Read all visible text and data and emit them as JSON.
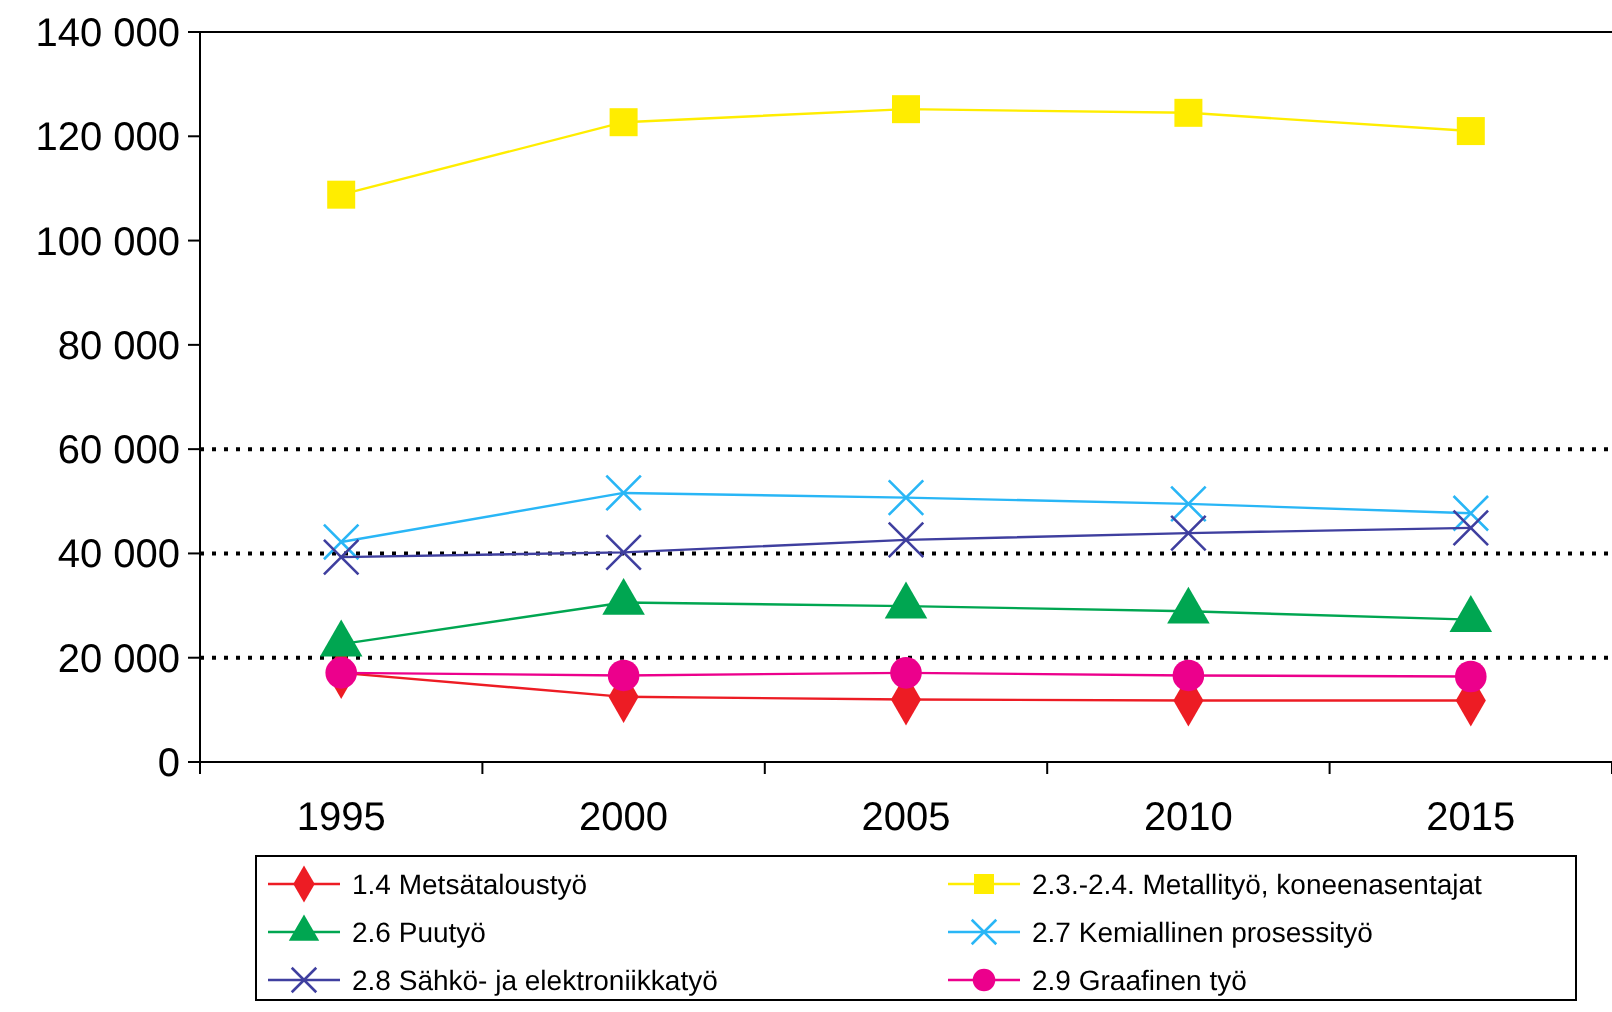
{
  "chart_data": {
    "type": "line",
    "categories": [
      "1995",
      "2000",
      "2005",
      "2010",
      "2015"
    ],
    "ylim": [
      0,
      140000
    ],
    "yticks": [
      {
        "value": 0,
        "label": "0"
      },
      {
        "value": 20000,
        "label": "20 000"
      },
      {
        "value": 40000,
        "label": "40 000"
      },
      {
        "value": 60000,
        "label": "60 000"
      },
      {
        "value": 80000,
        "label": "80 000"
      },
      {
        "value": 100000,
        "label": "100 000"
      },
      {
        "value": 120000,
        "label": "120 000"
      },
      {
        "value": 140000,
        "label": "140 000"
      }
    ],
    "legend": "bottom",
    "grid": false,
    "ref_lines": [
      {
        "axis": "y",
        "value": 20000,
        "line_style": "dotted",
        "color": "#000000"
      },
      {
        "axis": "y",
        "value": 40000,
        "line_style": "dotted",
        "color": "#000000"
      },
      {
        "axis": "y",
        "value": 60000,
        "line_style": "dotted",
        "color": "#000000"
      }
    ],
    "series": [
      {
        "name": "1.4  Metsätaloustyö",
        "color": "#ed1c24",
        "marker": "diamond",
        "values": [
          17100,
          12500,
          12000,
          11800,
          11800
        ]
      },
      {
        "name": "2.3.-2.4. Metallityö, koneenasentajat",
        "color": "#ffed00",
        "marker": "square",
        "values": [
          108800,
          122700,
          125200,
          124500,
          121000
        ]
      },
      {
        "name": "2.6  Puutyö",
        "color": "#00a651",
        "marker": "triangle",
        "values": [
          22600,
          30600,
          29900,
          28900,
          27300
        ]
      },
      {
        "name": "2.7  Kemiallinen prosessityö",
        "color": "#29b6f6",
        "marker": "cross",
        "values": [
          42200,
          51600,
          50700,
          49500,
          47700
        ]
      },
      {
        "name": "2.8  Sähkö- ja elektroniikkatyö",
        "color": "#3f3f9f",
        "marker": "cross",
        "values": [
          39300,
          40200,
          42600,
          43900,
          44900
        ]
      },
      {
        "name": "2.9  Graafinen työ",
        "color": "#ec008c",
        "marker": "circle",
        "values": [
          17100,
          16600,
          17100,
          16600,
          16400
        ]
      }
    ]
  }
}
